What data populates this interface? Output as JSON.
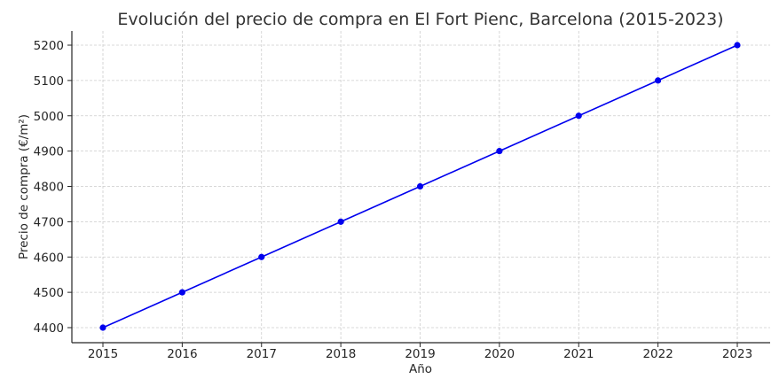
{
  "chart_data": {
    "type": "line",
    "title": "Evolución del precio de compra en El Fort Pienc, Barcelona (2015-2023)",
    "xlabel": "Año",
    "ylabel": "Precio de compra (€/m²)",
    "x": [
      2015,
      2016,
      2017,
      2018,
      2019,
      2020,
      2021,
      2022,
      2023
    ],
    "series": [
      {
        "name": "Precio de compra",
        "color": "#0000ee",
        "marker": "circle",
        "values": [
          4400,
          4500,
          4600,
          4700,
          4800,
          4900,
          5000,
          5100,
          5200
        ]
      }
    ],
    "xticks": [
      "2015",
      "2016",
      "2017",
      "2018",
      "2019",
      "2020",
      "2021",
      "2022",
      "2023"
    ],
    "yticks": [
      "4400",
      "4500",
      "4600",
      "4700",
      "4800",
      "4900",
      "5000",
      "5100",
      "5200"
    ],
    "xlim": [
      2014.6,
      2023.4
    ],
    "ylim": [
      4358,
      5240
    ],
    "grid": true,
    "legend": null
  }
}
